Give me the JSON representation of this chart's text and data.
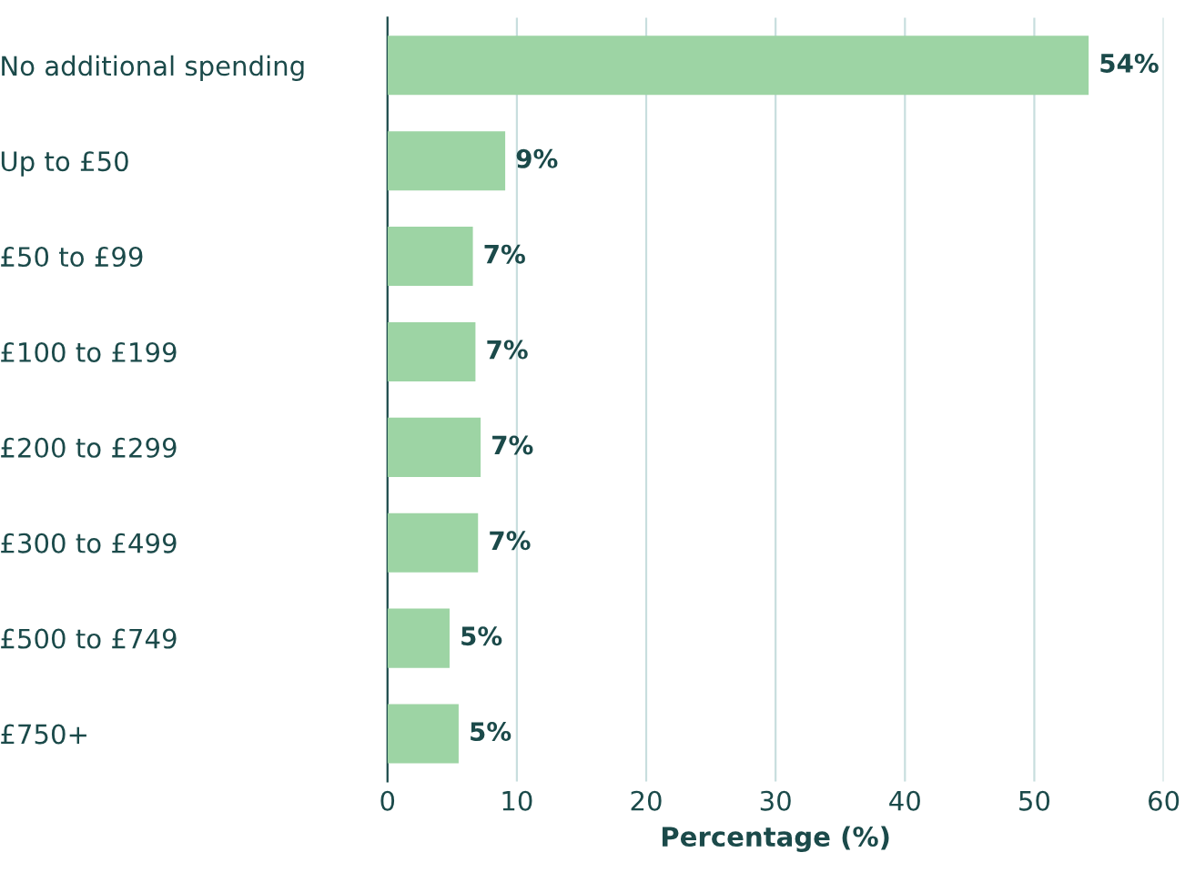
{
  "chart_data": {
    "type": "bar",
    "orientation": "horizontal",
    "xlabel": "Percentage (%)",
    "categories": [
      "No additional spending",
      "Up to £50",
      "£50 to £99",
      "£100 to £199",
      "£200 to £299",
      "£300 to £499",
      "£500 to £749",
      "£750+"
    ],
    "values": [
      54.2,
      9.1,
      6.6,
      6.8,
      7.2,
      7.0,
      4.8,
      5.5
    ],
    "value_labels": [
      "54%",
      "9%",
      "7%",
      "7%",
      "7%",
      "7%",
      "5%",
      "5%"
    ],
    "color": "#9dd4a4",
    "xlim": [
      0,
      60
    ],
    "xticks": [
      0,
      10,
      20,
      30,
      40,
      50,
      60
    ],
    "grid": "x"
  }
}
